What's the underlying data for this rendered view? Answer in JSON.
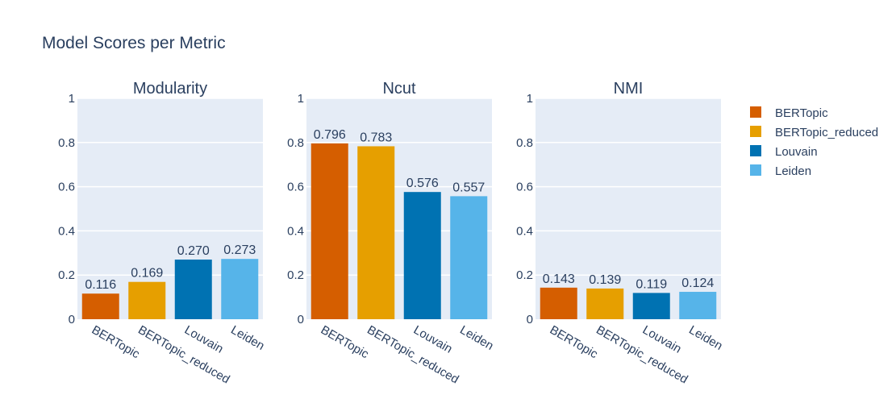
{
  "chart_data": {
    "type": "bar",
    "title": "Model Scores per Metric",
    "categories": [
      "BERTopic",
      "BERTopic_reduced",
      "Louvain",
      "Leiden"
    ],
    "colors": {
      "BERTopic": "#d55e00",
      "BERTopic_reduced": "#e69f00",
      "Louvain": "#0072b2",
      "Leiden": "#56b4e9"
    },
    "ylim": [
      0,
      1
    ],
    "yticks": [
      "0",
      "0.2",
      "0.4",
      "0.6",
      "0.8",
      "1"
    ],
    "grid": true,
    "legend_position": "right",
    "legend": [
      "BERTopic",
      "BERTopic_reduced",
      "Louvain",
      "Leiden"
    ],
    "panels": [
      {
        "title": "Modularity",
        "values": [
          0.116,
          0.169,
          0.27,
          0.273
        ],
        "labels": [
          "0.116",
          "0.169",
          "0.270",
          "0.273"
        ]
      },
      {
        "title": "Ncut",
        "values": [
          0.796,
          0.783,
          0.576,
          0.557
        ],
        "labels": [
          "0.796",
          "0.783",
          "0.576",
          "0.557"
        ]
      },
      {
        "title": "NMI",
        "values": [
          0.143,
          0.139,
          0.119,
          0.124
        ],
        "labels": [
          "0.143",
          "0.139",
          "0.119",
          "0.124"
        ]
      }
    ]
  }
}
